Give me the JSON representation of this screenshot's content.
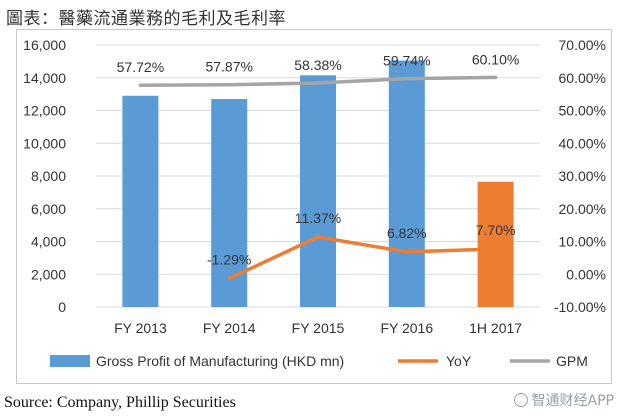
{
  "title": "圖表：醫藥流通業務的毛利及毛利率",
  "source": "Source: Company, Phillip Securities",
  "watermark": "智通财经APP",
  "colors": {
    "bar": "#5b9bd5",
    "bar_highlight": "#ed7d31",
    "yoy": "#ed7d31",
    "gpm": "#a5a5a5",
    "grid": "#d9d9d9",
    "text": "#404040"
  },
  "chart_data": {
    "type": "bar",
    "categories": [
      "FY 2013",
      "FY 2014",
      "FY 2015",
      "FY 2016",
      "1H 2017"
    ],
    "series": [
      {
        "name": "Gross Profit of Manufacturing (HKD mn)",
        "type": "bar",
        "axis": "left",
        "values": [
          12900,
          12700,
          14150,
          15050,
          7650
        ],
        "highlight_index": 4
      },
      {
        "name": "YoY",
        "type": "line",
        "axis": "right",
        "values": [
          null,
          -1.29,
          11.37,
          6.82,
          7.7
        ],
        "labels": [
          "",
          "-1.29%",
          "11.37%",
          "6.82%",
          "7.70%"
        ]
      },
      {
        "name": "GPM",
        "type": "line",
        "axis": "right",
        "values": [
          57.72,
          57.87,
          58.38,
          59.74,
          60.1
        ],
        "labels": [
          "57.72%",
          "57.87%",
          "58.38%",
          "59.74%",
          "60.10%"
        ]
      }
    ],
    "left_axis": {
      "ylim": [
        0,
        16000
      ],
      "ticks": [
        "0",
        "2,000",
        "4,000",
        "6,000",
        "8,000",
        "10,000",
        "12,000",
        "14,000",
        "16,000"
      ]
    },
    "right_axis": {
      "ylim": [
        -10,
        70
      ],
      "ticks": [
        "-10.00%",
        "0.00%",
        "10.00%",
        "20.00%",
        "30.00%",
        "40.00%",
        "50.00%",
        "60.00%",
        "70.00%"
      ]
    },
    "legend": [
      {
        "label": "Gross Profit of Manufacturing (HKD mn)",
        "kind": "box"
      },
      {
        "label": "YoY",
        "kind": "line-orange"
      },
      {
        "label": "GPM",
        "kind": "line-gray"
      }
    ],
    "grid": true,
    "legend_position": "bottom"
  }
}
